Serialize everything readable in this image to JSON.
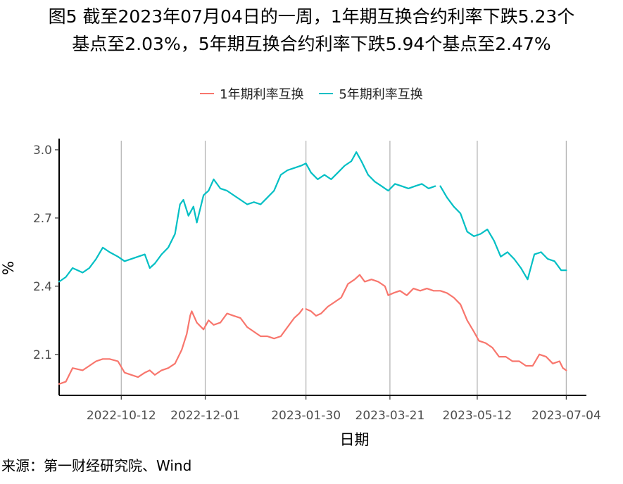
{
  "title": {
    "line1": "图5  截至2023年07月04日的一周，1年期互换合约利率下跌5.23个",
    "line2": "基点至2.03%，5年期互换合约利率下跌5.94个基点至2.47%"
  },
  "source": "来源：第一财经研究院、Wind",
  "colors": {
    "series1": "#F8766D",
    "series2": "#00BFC4",
    "axis": "#000000",
    "grid": "#B0B0B0"
  },
  "chart_data": {
    "type": "line",
    "xlabel": "日期",
    "ylabel": "%",
    "x_ticks": [
      "2022-10-12",
      "2022-12-01",
      "2023-01-30",
      "2023-03-21",
      "2023-05-12",
      "2023-07-04"
    ],
    "y_ticks": [
      "2.1",
      "2.4",
      "2.7",
      "3.0"
    ],
    "xlim": [
      "2022-09-05",
      "2023-07-16"
    ],
    "ylim": [
      1.92,
      3.04
    ],
    "grid": "vertical lines at x ticks",
    "legend_position": "top",
    "series": [
      {
        "name": "1年期利率互换",
        "color": "#F8766D",
        "segments": [
          [
            [
              "2022-09-05",
              1.97
            ],
            [
              "2022-09-09",
              1.98
            ],
            [
              "2022-09-13",
              2.04
            ],
            [
              "2022-09-19",
              2.03
            ],
            [
              "2022-09-23",
              2.05
            ],
            [
              "2022-09-27",
              2.07
            ],
            [
              "2022-10-01",
              2.08
            ],
            [
              "2022-10-05",
              2.08
            ],
            [
              "2022-10-10",
              2.07
            ],
            [
              "2022-10-14",
              2.02
            ],
            [
              "2022-10-18",
              2.01
            ],
            [
              "2022-10-22",
              2.0
            ],
            [
              "2022-10-26",
              2.02
            ],
            [
              "2022-10-29",
              2.03
            ],
            [
              "2022-11-01",
              2.01
            ],
            [
              "2022-11-05",
              2.03
            ],
            [
              "2022-11-09",
              2.04
            ],
            [
              "2022-11-13",
              2.06
            ],
            [
              "2022-11-17",
              2.12
            ],
            [
              "2022-11-20",
              2.19
            ],
            [
              "2022-11-22",
              2.27
            ],
            [
              "2022-11-23",
              2.29
            ],
            [
              "2022-11-26",
              2.24
            ],
            [
              "2022-11-30",
              2.21
            ],
            [
              "2022-12-03",
              2.25
            ],
            [
              "2022-12-06",
              2.23
            ],
            [
              "2022-12-10",
              2.24
            ],
            [
              "2022-12-14",
              2.28
            ],
            [
              "2022-12-18",
              2.27
            ],
            [
              "2022-12-22",
              2.26
            ],
            [
              "2022-12-26",
              2.22
            ],
            [
              "2022-12-30",
              2.2
            ],
            [
              "2023-01-03",
              2.18
            ],
            [
              "2023-01-07",
              2.18
            ],
            [
              "2023-01-11",
              2.17
            ],
            [
              "2023-01-15",
              2.18
            ],
            [
              "2023-01-19",
              2.22
            ],
            [
              "2023-01-23",
              2.26
            ],
            [
              "2023-01-26",
              2.28
            ],
            [
              "2023-01-28",
              2.3
            ]
          ],
          [
            [
              "2023-01-30",
              2.3
            ],
            [
              "2023-02-02",
              2.29
            ],
            [
              "2023-02-05",
              2.27
            ],
            [
              "2023-02-08",
              2.28
            ],
            [
              "2023-02-12",
              2.31
            ],
            [
              "2023-02-16",
              2.33
            ],
            [
              "2023-02-20",
              2.35
            ],
            [
              "2023-02-24",
              2.41
            ],
            [
              "2023-02-28",
              2.43
            ],
            [
              "2023-03-03",
              2.45
            ],
            [
              "2023-03-06",
              2.42
            ],
            [
              "2023-03-10",
              2.43
            ],
            [
              "2023-03-14",
              2.42
            ],
            [
              "2023-03-18",
              2.4
            ],
            [
              "2023-03-20",
              2.36
            ],
            [
              "2023-03-23",
              2.37
            ],
            [
              "2023-03-27",
              2.38
            ],
            [
              "2023-03-31",
              2.36
            ],
            [
              "2023-04-04",
              2.39
            ],
            [
              "2023-04-08",
              2.38
            ],
            [
              "2023-04-12",
              2.39
            ],
            [
              "2023-04-16",
              2.38
            ],
            [
              "2023-04-20",
              2.38
            ],
            [
              "2023-04-24",
              2.37
            ],
            [
              "2023-04-28",
              2.35
            ],
            [
              "2023-05-02",
              2.32
            ],
            [
              "2023-05-06",
              2.25
            ],
            [
              "2023-05-10",
              2.2
            ],
            [
              "2023-05-13",
              2.16
            ],
            [
              "2023-05-17",
              2.15
            ],
            [
              "2023-05-21",
              2.13
            ],
            [
              "2023-05-25",
              2.09
            ],
            [
              "2023-05-29",
              2.09
            ],
            [
              "2023-06-02",
              2.07
            ],
            [
              "2023-06-06",
              2.07
            ],
            [
              "2023-06-10",
              2.05
            ],
            [
              "2023-06-14",
              2.05
            ],
            [
              "2023-06-18",
              2.1
            ],
            [
              "2023-06-22",
              2.09
            ],
            [
              "2023-06-26",
              2.06
            ],
            [
              "2023-06-30",
              2.07
            ],
            [
              "2023-07-02",
              2.04
            ],
            [
              "2023-07-04",
              2.03
            ]
          ]
        ]
      },
      {
        "name": "5年期利率互换",
        "color": "#00BFC4",
        "segments": [
          [
            [
              "2022-09-05",
              2.42
            ],
            [
              "2022-09-09",
              2.44
            ],
            [
              "2022-09-13",
              2.48
            ],
            [
              "2022-09-19",
              2.46
            ],
            [
              "2022-09-23",
              2.48
            ],
            [
              "2022-09-27",
              2.52
            ],
            [
              "2022-10-01",
              2.57
            ],
            [
              "2022-10-05",
              2.55
            ],
            [
              "2022-10-10",
              2.53
            ],
            [
              "2022-10-14",
              2.51
            ],
            [
              "2022-10-18",
              2.52
            ],
            [
              "2022-10-22",
              2.53
            ],
            [
              "2022-10-26",
              2.54
            ],
            [
              "2022-10-29",
              2.48
            ],
            [
              "2022-11-01",
              2.5
            ],
            [
              "2022-11-05",
              2.54
            ],
            [
              "2022-11-09",
              2.57
            ],
            [
              "2022-11-13",
              2.63
            ],
            [
              "2022-11-16",
              2.76
            ],
            [
              "2022-11-18",
              2.78
            ],
            [
              "2022-11-21",
              2.71
            ],
            [
              "2022-11-24",
              2.75
            ],
            [
              "2022-11-26",
              2.68
            ],
            [
              "2022-11-30",
              2.8
            ],
            [
              "2022-12-03",
              2.82
            ],
            [
              "2022-12-06",
              2.87
            ],
            [
              "2022-12-10",
              2.83
            ],
            [
              "2022-12-14",
              2.82
            ],
            [
              "2022-12-18",
              2.8
            ],
            [
              "2022-12-22",
              2.78
            ],
            [
              "2022-12-26",
              2.76
            ],
            [
              "2022-12-30",
              2.77
            ],
            [
              "2023-01-03",
              2.76
            ],
            [
              "2023-01-07",
              2.79
            ],
            [
              "2023-01-11",
              2.82
            ],
            [
              "2023-01-15",
              2.89
            ],
            [
              "2023-01-19",
              2.91
            ],
            [
              "2023-01-23",
              2.92
            ],
            [
              "2023-01-27",
              2.93
            ],
            [
              "2023-01-30",
              2.94
            ],
            [
              "2023-02-02",
              2.9
            ],
            [
              "2023-02-06",
              2.87
            ],
            [
              "2023-02-10",
              2.89
            ],
            [
              "2023-02-14",
              2.87
            ],
            [
              "2023-02-18",
              2.9
            ],
            [
              "2023-02-22",
              2.93
            ],
            [
              "2023-02-26",
              2.95
            ],
            [
              "2023-03-01",
              2.99
            ],
            [
              "2023-03-04",
              2.95
            ],
            [
              "2023-03-08",
              2.89
            ],
            [
              "2023-03-12",
              2.86
            ],
            [
              "2023-03-16",
              2.84
            ],
            [
              "2023-03-20",
              2.82
            ],
            [
              "2023-03-24",
              2.85
            ],
            [
              "2023-03-28",
              2.84
            ],
            [
              "2023-04-01",
              2.83
            ],
            [
              "2023-04-05",
              2.84
            ],
            [
              "2023-04-09",
              2.85
            ],
            [
              "2023-04-13",
              2.83
            ],
            [
              "2023-04-17",
              2.84
            ]
          ],
          [
            [
              "2023-04-20",
              2.84
            ],
            [
              "2023-04-24",
              2.79
            ],
            [
              "2023-04-28",
              2.75
            ],
            [
              "2023-05-02",
              2.72
            ],
            [
              "2023-05-06",
              2.64
            ],
            [
              "2023-05-10",
              2.62
            ],
            [
              "2023-05-14",
              2.63
            ],
            [
              "2023-05-18",
              2.65
            ],
            [
              "2023-05-22",
              2.6
            ],
            [
              "2023-05-26",
              2.53
            ],
            [
              "2023-05-30",
              2.55
            ],
            [
              "2023-06-03",
              2.52
            ],
            [
              "2023-06-07",
              2.48
            ],
            [
              "2023-06-11",
              2.43
            ],
            [
              "2023-06-15",
              2.54
            ],
            [
              "2023-06-19",
              2.55
            ],
            [
              "2023-06-23",
              2.52
            ],
            [
              "2023-06-27",
              2.51
            ],
            [
              "2023-07-01",
              2.47
            ],
            [
              "2023-07-04",
              2.47
            ]
          ]
        ]
      }
    ]
  }
}
